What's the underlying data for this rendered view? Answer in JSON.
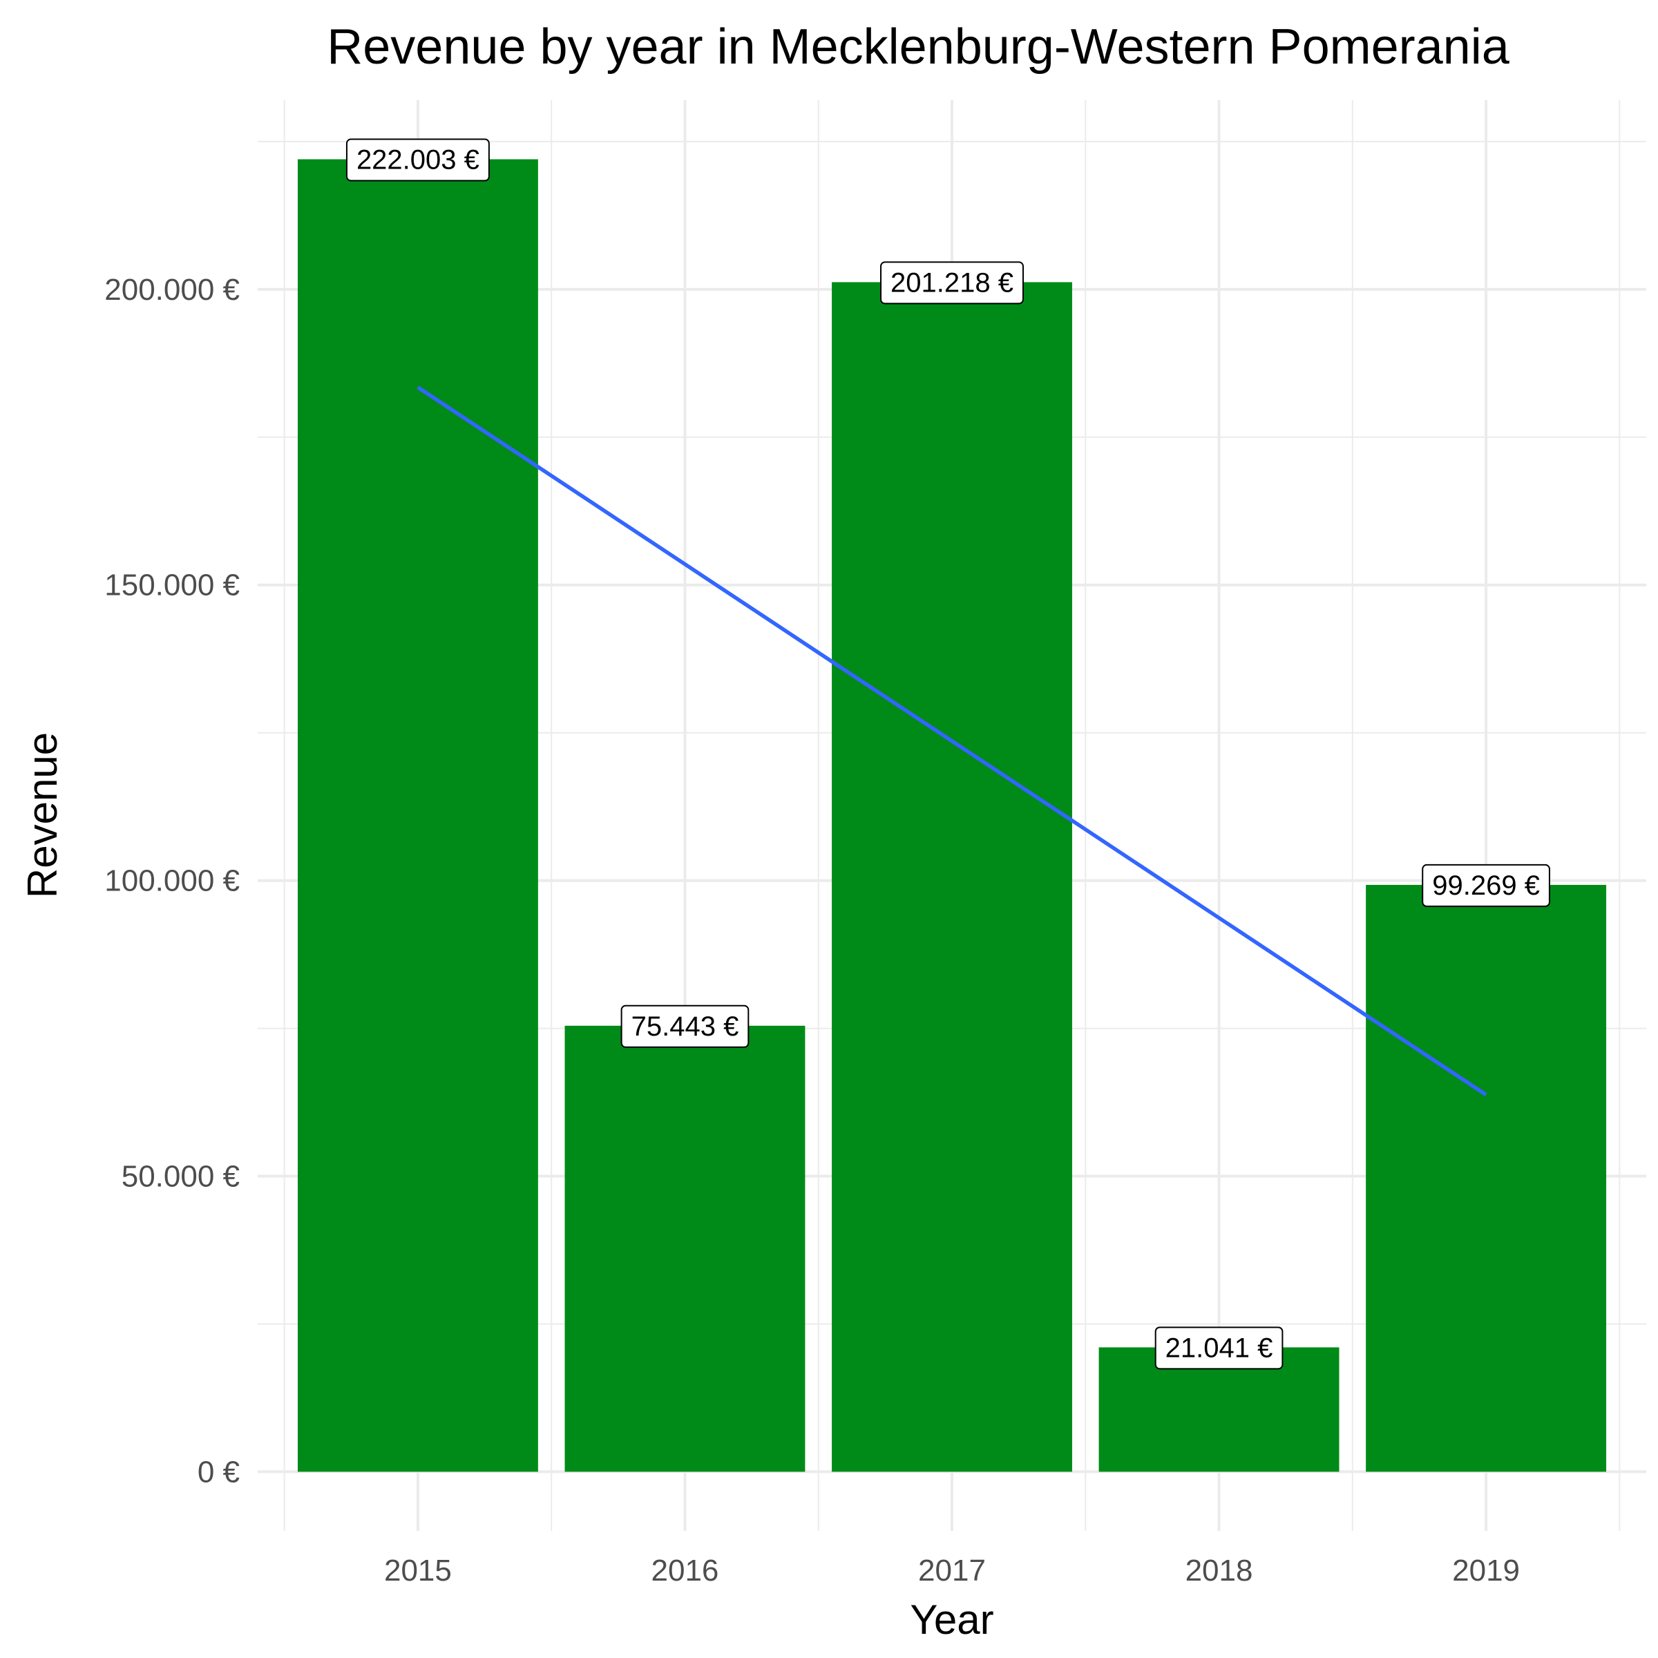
{
  "chart_data": {
    "type": "bar",
    "title": "Revenue by year in Mecklenburg-Western Pomerania",
    "xlabel": "Year",
    "ylabel": "Revenue",
    "categories": [
      "2015",
      "2016",
      "2017",
      "2018",
      "2019"
    ],
    "values": [
      222003,
      75443,
      201218,
      21041,
      99269
    ],
    "value_labels": [
      "222.003 €",
      "75.443 €",
      "201.218 €",
      "21.041 €",
      "99.269 €"
    ],
    "ylim": [
      -10000,
      232000
    ],
    "yticks": [
      0,
      50000,
      100000,
      150000,
      200000
    ],
    "ytick_labels": [
      "0 €",
      "50.000 €",
      "100.000 €",
      "150.000 €",
      "200.000 €"
    ],
    "trend_line": {
      "start": 183431,
      "end": 63771
    },
    "grid": true,
    "bar_color": "#008B18",
    "trend_color": "#3366FF"
  }
}
